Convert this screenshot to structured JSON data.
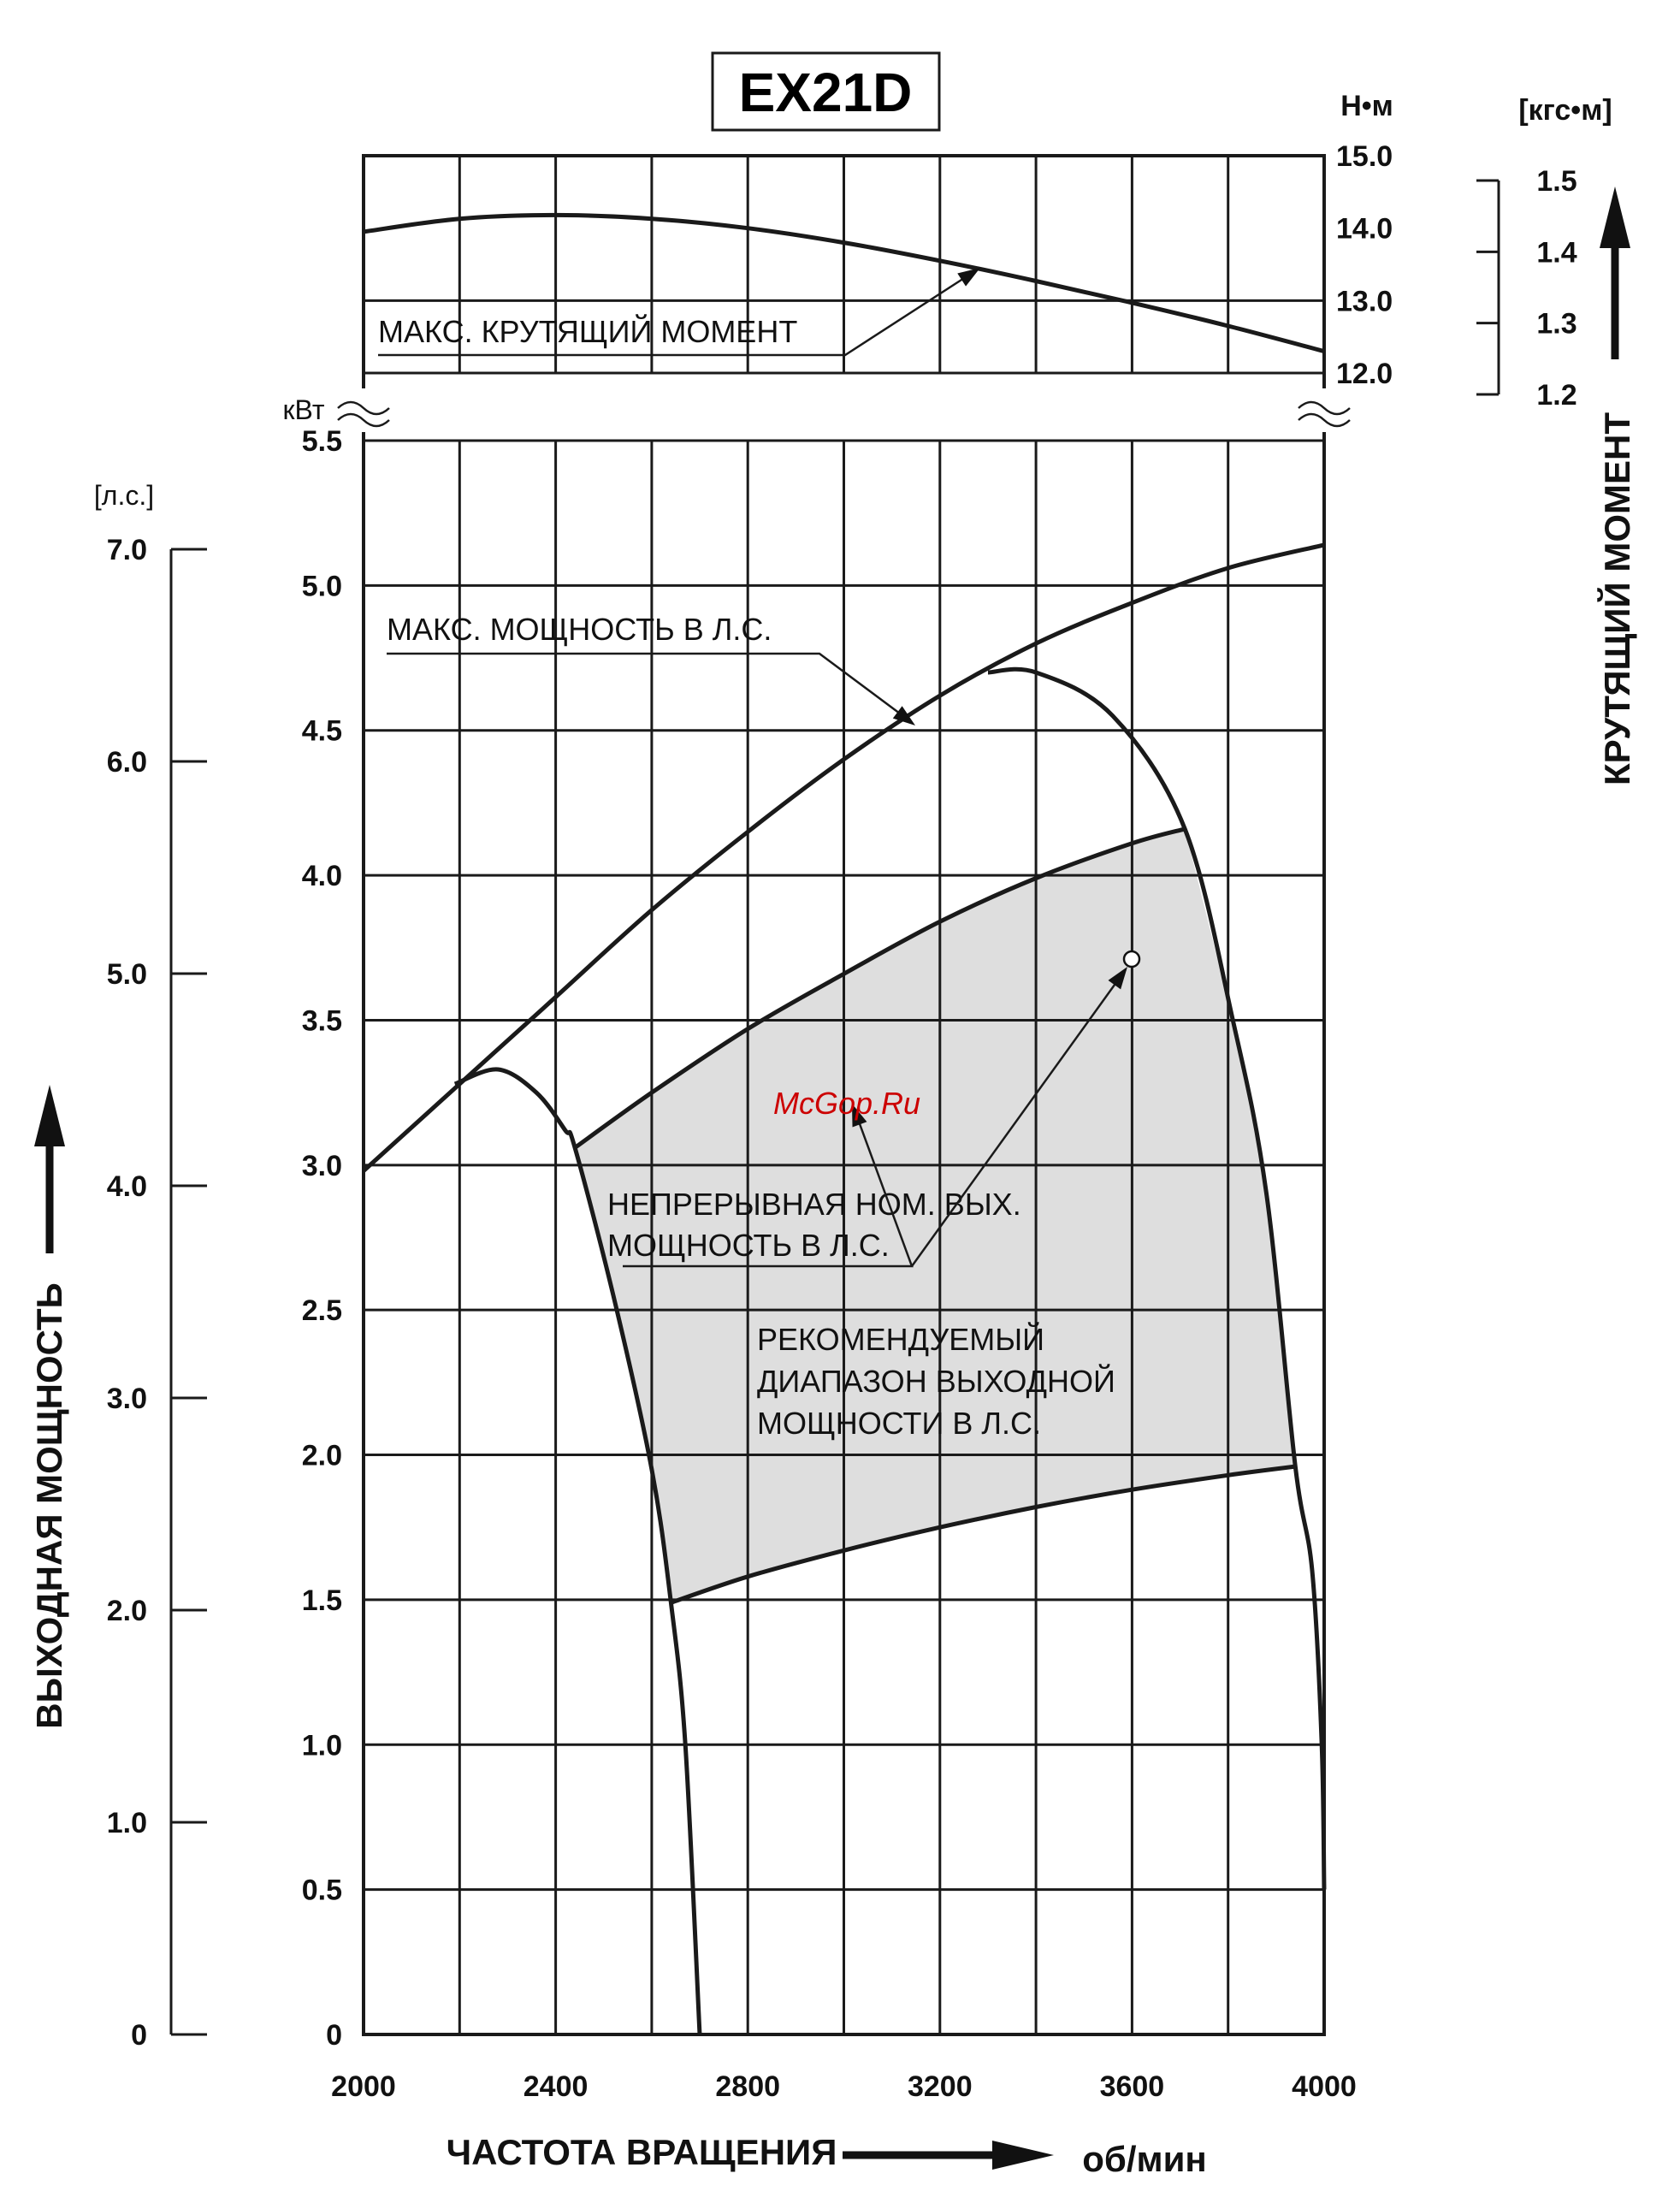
{
  "chart_data": {
    "type": "line",
    "title": "EX21D",
    "watermark": "McGop.Ru",
    "xlabel": "ЧАСТОТА ВРАЩЕНИЯ",
    "xunit": "об/мин",
    "xlim": [
      2000,
      4000
    ],
    "x_ticks": [
      "2000",
      "2400",
      "2800",
      "3200",
      "3600",
      "4000"
    ],
    "power_kw_unit": "кВт",
    "power_kw_range": [
      0,
      5.5
    ],
    "power_kw_ticks": [
      "0",
      "0.5",
      "1.0",
      "1.5",
      "2.0",
      "2.5",
      "3.0",
      "3.5",
      "4.0",
      "4.5",
      "5.0",
      "5.5"
    ],
    "power_hp_unit": "[л.с.]",
    "power_hp_ticks": [
      "0",
      "1.0",
      "2.0",
      "3.0",
      "4.0",
      "5.0",
      "6.0",
      "7.0"
    ],
    "power_axis_title": "ВЫХОДНАЯ МОЩНОСТЬ",
    "torque_nm_unit": "Н•м",
    "torque_nm_range": [
      12.0,
      15.0
    ],
    "torque_nm_ticks": [
      "12.0",
      "13.0",
      "14.0",
      "15.0"
    ],
    "torque_kgfm_unit": "[кгс•м]",
    "torque_kgfm_ticks": [
      "1.2",
      "1.3",
      "1.4",
      "1.5"
    ],
    "torque_axis_title": "КРУТЯЩИЙ МОМЕНТ",
    "grid": true,
    "series": [
      {
        "name": "МАКС. КРУТЯЩИЙ МОМЕНТ",
        "axis": "torque_nm",
        "x": [
          2000,
          2200,
          2400,
          2600,
          2800,
          3000,
          3200,
          3400,
          3600,
          3800,
          4000
        ],
        "y": [
          13.95,
          14.13,
          14.18,
          14.13,
          14.0,
          13.8,
          13.55,
          13.27,
          12.97,
          12.65,
          12.3
        ]
      },
      {
        "name": "МАКС. МОЩНОСТЬ В Л.С.",
        "axis": "power_kw",
        "x": [
          2000,
          2200,
          2400,
          2600,
          2800,
          3000,
          3200,
          3400,
          3600,
          3800,
          4000
        ],
        "y": [
          2.98,
          3.28,
          3.58,
          3.88,
          4.15,
          4.4,
          4.62,
          4.8,
          4.94,
          5.06,
          5.14
        ]
      },
      {
        "name": "НЕПРЕРЫВНАЯ НОМ. ВЫХ. МОЩНОСТЬ В Л.С.",
        "axis": "power_kw",
        "x": [
          2440,
          2600,
          2800,
          3000,
          3200,
          3400,
          3600,
          3710
        ],
        "y": [
          3.06,
          3.25,
          3.47,
          3.66,
          3.84,
          3.99,
          4.11,
          4.16
        ]
      },
      {
        "name": "РЕКОМЕНДУЕМЫЙ ДИАПАЗОН ВЫХОДНОЙ МОЩНОСТИ В Л.С.",
        "axis": "power_kw",
        "x": [
          2640,
          2800,
          3000,
          3200,
          3400,
          3600,
          3800,
          3940
        ],
        "y": [
          1.49,
          1.58,
          1.67,
          1.75,
          1.82,
          1.88,
          1.93,
          1.96
        ]
      }
    ],
    "annotations": [
      {
        "id": "torque",
        "text": [
          "МАКС. КРУТЯЩИЙ МОМЕНТ"
        ]
      },
      {
        "id": "maxpower",
        "text": [
          "МАКС. МОЩНОСТЬ В Л.С."
        ]
      },
      {
        "id": "continuous",
        "text": [
          "НЕПРЕРЫВНАЯ НОМ. ВЫХ.",
          "МОЩНОСТЬ В Л.С."
        ]
      },
      {
        "id": "recommended",
        "text": [
          "РЕКОМЕНДУЕМЫЙ",
          "ДИАПАЗОН ВЫХОДНОЙ",
          "МОЩНОСТИ В Л.С."
        ]
      }
    ]
  }
}
